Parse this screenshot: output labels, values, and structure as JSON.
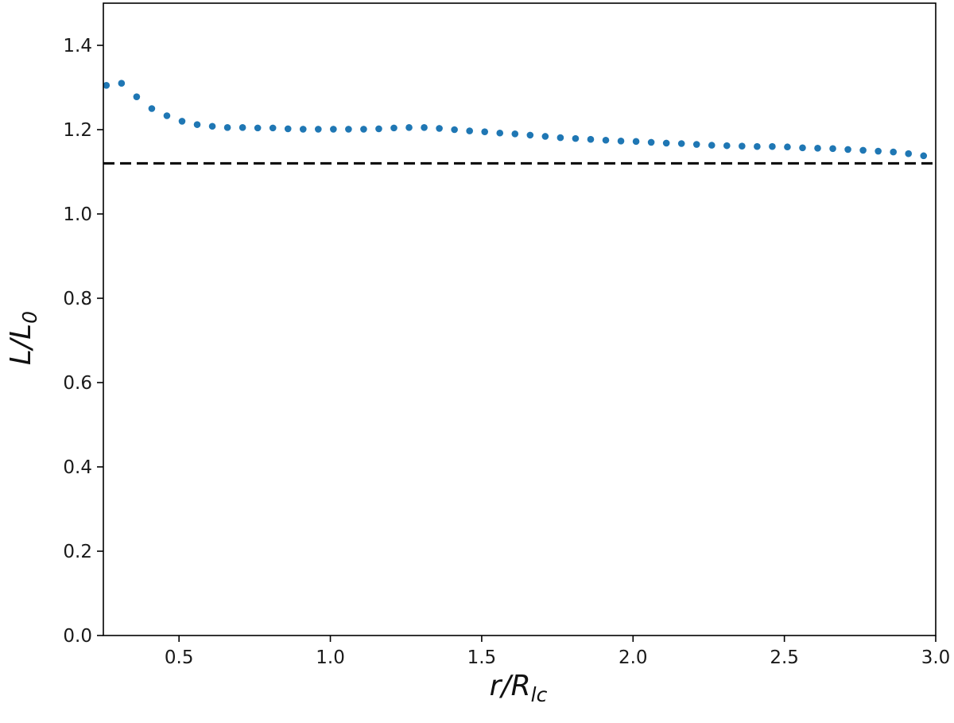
{
  "chart_data": {
    "type": "scatter",
    "xlabel_main": "r/R",
    "xlabel_sub": "lc",
    "ylabel_main": "L/L",
    "ylabel_sub": "0",
    "xlim": [
      0.25,
      3.0
    ],
    "ylim": [
      0.0,
      1.5
    ],
    "xticks": [
      {
        "value": 0.5,
        "label": "0.5"
      },
      {
        "value": 1.0,
        "label": "1.0"
      },
      {
        "value": 1.5,
        "label": "1.5"
      },
      {
        "value": 2.0,
        "label": "2.0"
      },
      {
        "value": 2.5,
        "label": "2.5"
      },
      {
        "value": 3.0,
        "label": "3.0"
      }
    ],
    "yticks": [
      {
        "value": 0.0,
        "label": "0.0"
      },
      {
        "value": 0.2,
        "label": "0.2"
      },
      {
        "value": 0.4,
        "label": "0.4"
      },
      {
        "value": 0.6,
        "label": "0.6"
      },
      {
        "value": 0.8,
        "label": "0.8"
      },
      {
        "value": 1.0,
        "label": "1.0"
      },
      {
        "value": 1.2,
        "label": "1.2"
      },
      {
        "value": 1.4,
        "label": "1.4"
      }
    ],
    "grid": false,
    "marker_color": "#1f77b4",
    "reference_line": {
      "y": 1.12,
      "style": "dashed",
      "color": "#000000"
    },
    "series": [
      {
        "x": [
          0.26,
          0.31,
          0.36,
          0.41,
          0.46,
          0.51,
          0.56,
          0.61,
          0.66,
          0.71,
          0.76,
          0.81,
          0.86,
          0.91,
          0.96,
          1.01,
          1.06,
          1.11,
          1.16,
          1.21,
          1.26,
          1.31,
          1.36,
          1.41,
          1.46,
          1.51,
          1.56,
          1.61,
          1.66,
          1.71,
          1.76,
          1.81,
          1.86,
          1.91,
          1.96,
          2.01,
          2.06,
          2.11,
          2.16,
          2.21,
          2.26,
          2.31,
          2.36,
          2.41,
          2.46,
          2.51,
          2.56,
          2.61,
          2.66,
          2.71,
          2.76,
          2.81,
          2.86,
          2.91,
          2.96
        ],
        "y": [
          1.305,
          1.31,
          1.278,
          1.25,
          1.233,
          1.22,
          1.212,
          1.208,
          1.205,
          1.205,
          1.204,
          1.204,
          1.202,
          1.201,
          1.201,
          1.201,
          1.201,
          1.201,
          1.202,
          1.204,
          1.205,
          1.205,
          1.203,
          1.2,
          1.197,
          1.195,
          1.192,
          1.19,
          1.187,
          1.184,
          1.181,
          1.179,
          1.177,
          1.175,
          1.173,
          1.172,
          1.17,
          1.168,
          1.167,
          1.165,
          1.163,
          1.162,
          1.161,
          1.16,
          1.16,
          1.159,
          1.157,
          1.156,
          1.155,
          1.153,
          1.151,
          1.149,
          1.147,
          1.143,
          1.138
        ]
      }
    ]
  }
}
